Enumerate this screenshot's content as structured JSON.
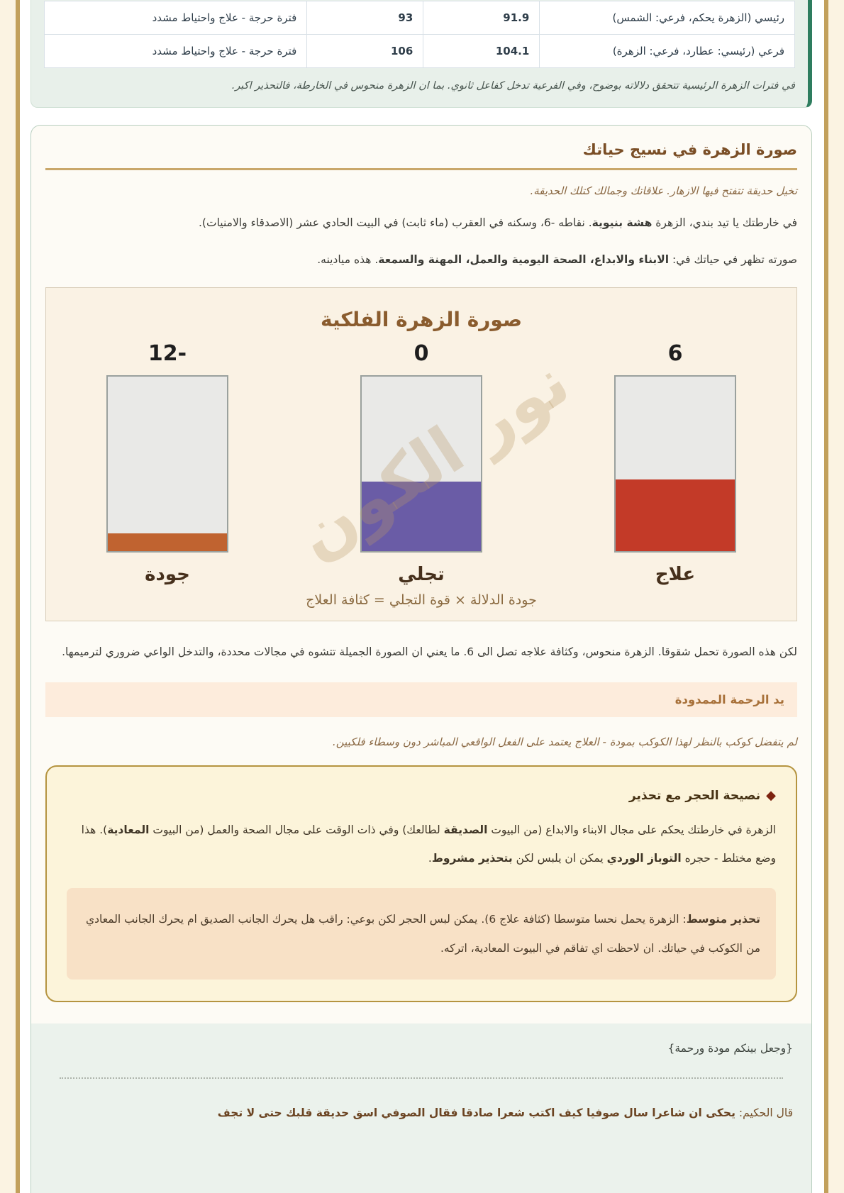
{
  "theme": {
    "page_margin_cream": "#fbf3e2",
    "gold_border": "#c2a05c",
    "mint_bg": "#e8f0ea",
    "mint_accent_bar": "#2e7d5f",
    "card_bg": "#fdfbf5",
    "title_brown": "#7a4e26",
    "band_bg": "#fdecdc",
    "advice_border": "#b59440",
    "advice_bg": "#fcf4da",
    "warning_bg": "#f8e1c6"
  },
  "dasha_table": {
    "rows": [
      {
        "label": "رئيسي (الزهرة يحكم، فرعي: الشمس)",
        "value1": "91.9",
        "value2": "93",
        "status": "فترة حرجة - علاج واحتياط مشدد"
      },
      {
        "label": "فرعي (رئيسي: عطارد، فرعي: الزهرة)",
        "value1": "104.1",
        "value2": "106",
        "status": "فترة حرجة - علاج واحتياط مشدد"
      }
    ],
    "note": "في فترات الزهرة الرئيسية تتحقق دلالاته بوضوح، وفي الفرعية تدخل كفاعل ثانوي. بما ان الزهرة منحوس في الخارطة، فالتحذير اكبر."
  },
  "main_card": {
    "title": "صورة الزهرة في نسيج حياتك",
    "lead_italic": "تخيل حديقة تتفتح فيها الازهار. علاقاتك وجمالك كتلك الحديقة.",
    "para1": {
      "pre": "في خارطتك يا تيد بندي، الزهرة ",
      "bold": "هشة بنيوية",
      "post": ". نقاطه -6، وسكنه في العقرب (ماء ثابت) في البيت الحادي عشر (الاصدقاء والامنيات)."
    },
    "para2": {
      "pre": "صورته تظهر في حياتك في: ",
      "bold": "الابناء والابداع، الصحة اليومية والعمل، المهنة والسمعة",
      "post": ". هذه ميادينه."
    },
    "after_chart": "لكن هذه الصورة تحمل شقوقا. الزهرة منحوس، وكثافة علاجه تصل الى 6. ما يعني ان الصورة الجميلة تتشوه في مجالات محددة، والتدخل الواعي ضروري لترميمها."
  },
  "chart_data": {
    "type": "bar",
    "title": "صورة الزهرة الفلكية",
    "watermark": "نور الكون",
    "categories": [
      "علاج",
      "تجلي",
      "جودة"
    ],
    "value_labels": [
      "6",
      "0",
      "-12"
    ],
    "values": [
      6,
      0,
      -12
    ],
    "fill_percents": [
      41,
      40,
      10
    ],
    "colors": [
      "#c33a28",
      "#6a5ca6",
      "#c06330"
    ],
    "bar_track_color": "#e9e9e7",
    "caption": "جودة الدلالة × قوة التجلي = كثافة العلاج",
    "legend_position": "none",
    "grid": false
  },
  "mercy_section": {
    "header": "يد الرحمة الممدودة",
    "italic": "لم يتفضل كوكب بالنظر لهذا الكوكب بمودة - العلاج يعتمد على الفعل الواقعي المباشر دون وسطاء فلكيين."
  },
  "advice_card": {
    "icon": "◆",
    "title": "نصيحة الحجر مع تحذير",
    "para": {
      "pre": "الزهرة في خارطتك يحكم على مجال الابناء والابداع (من البيوت ",
      "b1": "الصديقة",
      "mid1": " لطالعك) وفي ذات الوقت على مجال الصحة والعمل (من البيوت ",
      "b2": "المعادية",
      "mid2": "). هذا وضع مختلط - حجره ",
      "b3": "التوباز الوردي",
      "mid3": " يمكن ان يلبس لكن ",
      "b4": "بتحذير مشروط",
      "post": "."
    },
    "warning": {
      "bold": "تحذير متوسط",
      "text": ": الزهرة يحمل نحسا متوسطا (كثافة علاج 6). يمكن لبس الحجر لكن بوعي: راقب هل يحرك الجانب الصديق ام يحرك الجانب المعادي من الكوكب في حياتك. ان لاحظت اي تفاقم في البيوت المعادية، اتركه."
    }
  },
  "footer": {
    "quote": "{وجعل بينكم مودة ورحمة}",
    "saying_prefix": "قال الحكيم: ",
    "saying_bold": "يحكى ان شاعرا سال صوفيا كيف اكتب شعرا صادقا فقال الصوفي اسق حديقة قلبك حتى لا تجف"
  }
}
